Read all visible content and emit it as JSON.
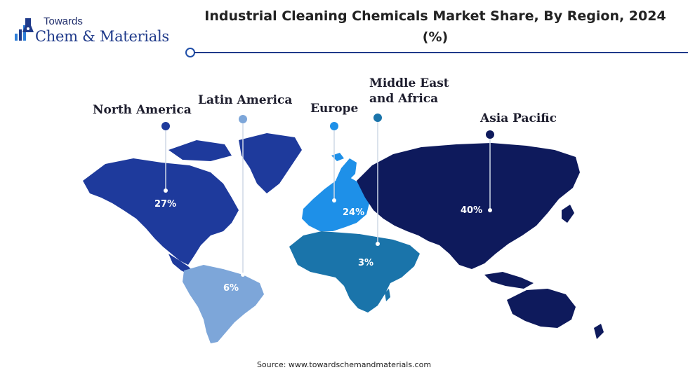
{
  "logo": {
    "top": "Towards",
    "main": "Chem & Materials"
  },
  "title": "Industrial Cleaning Chemicals Market Share, By Region, 2024 (%)",
  "regions": [
    {
      "name": "North America",
      "value": "27%",
      "color": "#1e3a9c"
    },
    {
      "name": "Latin America",
      "value": "6%",
      "color": "#7da6d9"
    },
    {
      "name": "Europe",
      "value": "24%",
      "color": "#1e90e8"
    },
    {
      "name": "Middle East and Africa",
      "value": "3%",
      "color": "#1a74aa"
    },
    {
      "name": "Asia Pacific",
      "value": "40%",
      "color": "#0e1a5c"
    }
  ],
  "source": "Source: www.towardschemandmaterials.com"
}
